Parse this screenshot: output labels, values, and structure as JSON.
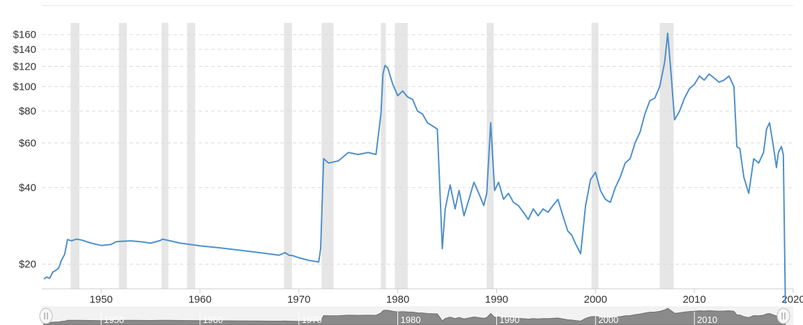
{
  "chart_data": {
    "type": "line",
    "title": "",
    "xlabel": "",
    "ylabel": "",
    "y_scale": "log",
    "xlim": [
      1944,
      2020
    ],
    "ylim": [
      16,
      168
    ],
    "y_ticks": [
      {
        "value": 20,
        "label": "$20"
      },
      {
        "value": 40,
        "label": "$40"
      },
      {
        "value": 60,
        "label": "$60"
      },
      {
        "value": 80,
        "label": "$80"
      },
      {
        "value": 100,
        "label": "$100"
      },
      {
        "value": 120,
        "label": "$120"
      },
      {
        "value": 140,
        "label": "$140"
      },
      {
        "value": 160,
        "label": "$160"
      }
    ],
    "x_ticks": [
      1950,
      1960,
      1970,
      1980,
      1990,
      2000,
      2010,
      2020
    ],
    "grid": "horizontal-dashed",
    "recession_bands": [
      [
        1946.9,
        1947.8
      ],
      [
        1951.8,
        1952.6
      ],
      [
        1956.1,
        1956.8
      ],
      [
        1958.7,
        1959.5
      ],
      [
        1968.5,
        1969.3
      ],
      [
        1972.3,
        1973.5
      ],
      [
        1978.3,
        1978.8
      ],
      [
        1979.7,
        1981.0
      ],
      [
        1989.0,
        1989.7
      ],
      [
        1999.6,
        2000.3
      ],
      [
        2006.5,
        2007.9
      ]
    ],
    "series": [
      {
        "color": "#4e8fcc",
        "x": [
          1944.2,
          1944.5,
          1944.8,
          1945.1,
          1945.4,
          1945.7,
          1946.0,
          1946.3,
          1946.6,
          1947.0,
          1947.5,
          1948.0,
          1949.0,
          1950.0,
          1951.0,
          1951.5,
          1952.0,
          1953.0,
          1954.0,
          1955.0,
          1956.0,
          1956.2,
          1957.0,
          1958.0,
          1959.0,
          1960.0,
          1962.0,
          1964.0,
          1966.0,
          1968.0,
          1968.6,
          1969.0,
          1969.4,
          1970.0,
          1971.0,
          1972.0,
          1972.2,
          1972.5,
          1973.0,
          1974.0,
          1975.0,
          1976.0,
          1977.0,
          1977.8,
          1978.3,
          1978.5,
          1978.7,
          1979.0,
          1979.5,
          1980.0,
          1980.5,
          1981.0,
          1981.5,
          1982.0,
          1982.5,
          1983.0,
          1983.5,
          1984.0,
          1984.2,
          1984.5,
          1984.8,
          1985.3,
          1985.8,
          1986.2,
          1986.7,
          1987.2,
          1987.7,
          1988.2,
          1988.7,
          1989.0,
          1989.4,
          1989.8,
          1990.2,
          1990.7,
          1991.2,
          1991.7,
          1992.2,
          1992.7,
          1993.2,
          1993.7,
          1994.2,
          1994.7,
          1995.2,
          1995.7,
          1996.2,
          1996.7,
          1997.2,
          1997.6,
          1998.0,
          1998.5,
          1999.0,
          1999.5,
          2000.0,
          2000.5,
          2001.0,
          2001.5,
          2002.0,
          2002.5,
          2003.0,
          2003.5,
          2004.0,
          2004.5,
          2005.0,
          2005.5,
          2006.0,
          2006.5,
          2007.0,
          2007.3,
          2007.6,
          2008.0,
          2008.5,
          2009.0,
          2009.5,
          2010.0,
          2010.5,
          2011.0,
          2011.5,
          2012.0,
          2012.5,
          2013.0,
          2013.5,
          2014.0,
          2014.3,
          2014.6,
          2015.0,
          2015.5,
          2016.0,
          2016.5,
          2017.0,
          2017.3,
          2017.6,
          2018.0,
          2018.3,
          2018.5,
          2018.8,
          2019.0,
          2019.2
        ],
        "y": [
          17.5,
          17.8,
          17.6,
          18.6,
          18.9,
          19.3,
          20.8,
          21.8,
          25.0,
          24.7,
          25.1,
          24.9,
          24.2,
          23.7,
          23.9,
          24.5,
          24.6,
          24.7,
          24.5,
          24.2,
          24.8,
          25.1,
          24.7,
          24.2,
          23.9,
          23.6,
          23.2,
          22.7,
          22.2,
          21.7,
          22.2,
          21.7,
          21.6,
          21.2,
          20.7,
          20.4,
          23.0,
          52.0,
          50.0,
          51.0,
          55.0,
          54.0,
          55.0,
          54.0,
          78.0,
          112.0,
          121.0,
          118.0,
          102.0,
          92.0,
          96.0,
          91.0,
          89.0,
          80.0,
          78.0,
          72.0,
          70.0,
          68.0,
          45.0,
          23.0,
          33.0,
          41.0,
          33.0,
          39.0,
          31.0,
          36.0,
          42.0,
          38.0,
          34.0,
          38.0,
          72.0,
          39.0,
          42.0,
          36.0,
          38.0,
          35.0,
          34.0,
          32.0,
          30.0,
          33.0,
          31.0,
          33.0,
          32.0,
          34.0,
          36.0,
          31.0,
          27.0,
          26.0,
          24.0,
          22.0,
          34.0,
          43.0,
          46.0,
          39.0,
          36.0,
          35.0,
          40.0,
          44.0,
          50.0,
          52.0,
          60.0,
          66.0,
          78.0,
          88.0,
          90.0,
          100.0,
          125.0,
          162.0,
          118.0,
          74.0,
          80.0,
          90.0,
          98.0,
          102.0,
          110.0,
          106.0,
          112.0,
          108.0,
          104.0,
          106.0,
          110.0,
          100.0,
          58.0,
          57.0,
          44.0,
          38.0,
          52.0,
          50.0,
          55.0,
          68.0,
          72.0,
          58.0,
          48.0,
          55.0,
          58.0,
          54.0,
          14.0
        ]
      }
    ]
  },
  "navigator": {
    "labels": [
      "1950",
      "1960",
      "1970",
      "1980",
      "1990",
      "2000",
      "2010"
    ],
    "left_handle_icon": "drag-handle-icon",
    "right_handle_icon": "drag-handle-icon"
  }
}
